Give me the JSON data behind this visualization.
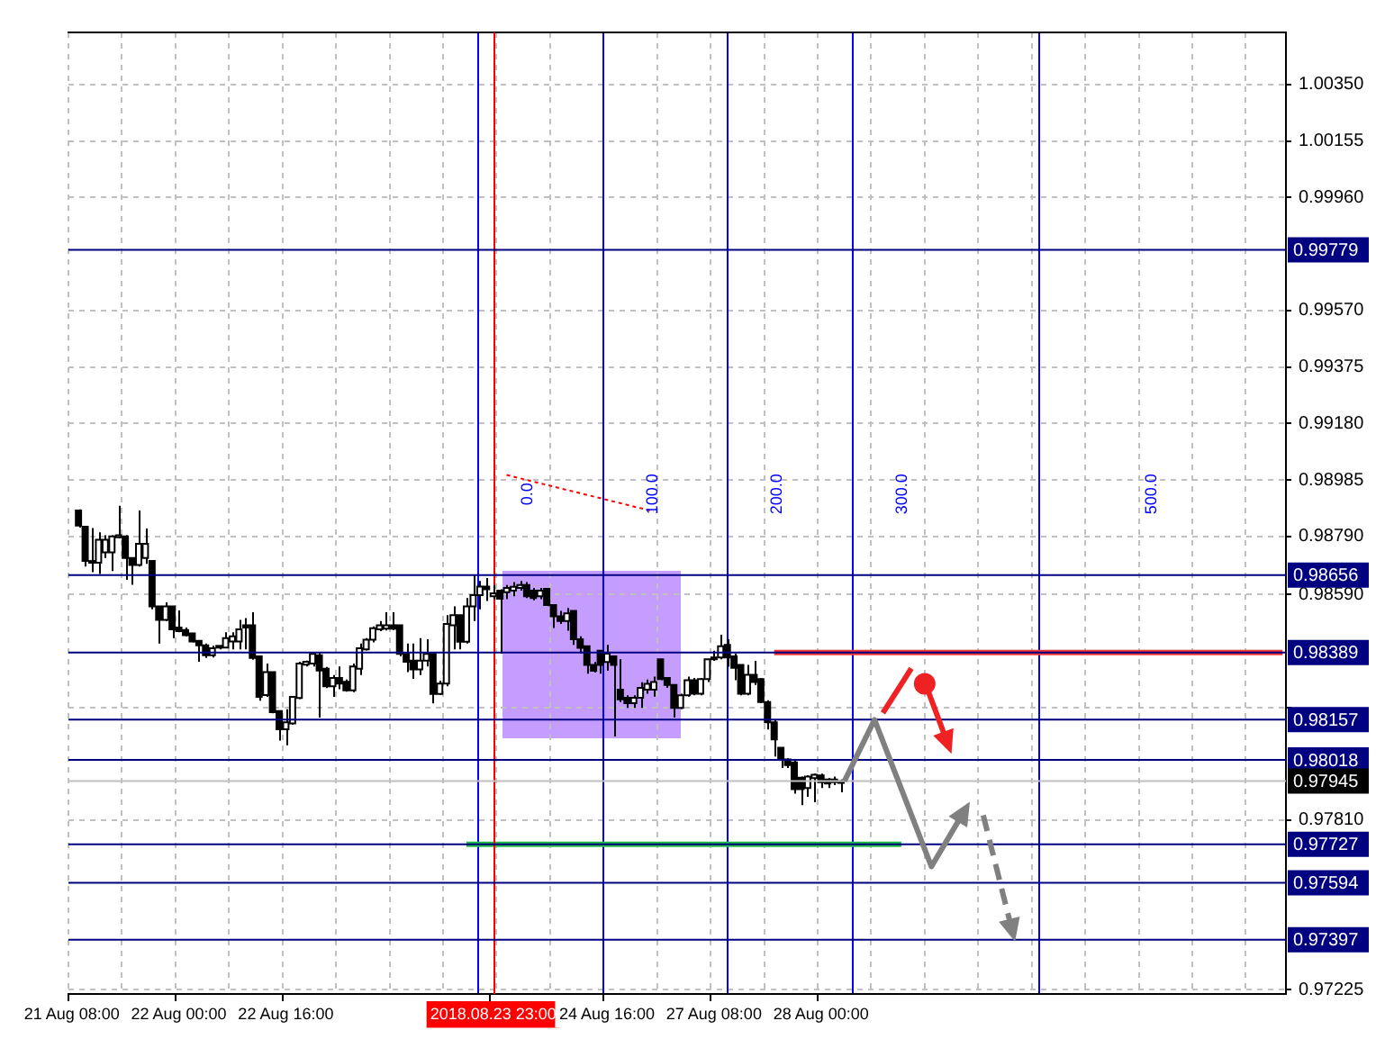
{
  "chart_data": {
    "type": "candlestick",
    "categories": [
      "21 Aug 08:00",
      null,
      null,
      null,
      null,
      null,
      null,
      null,
      null,
      null,
      null,
      null,
      null,
      null,
      null,
      null,
      "22 Aug 00:00",
      null,
      null,
      null,
      null,
      null,
      null,
      null,
      null,
      null,
      null,
      null,
      null,
      null,
      null,
      null,
      "22 Aug 16:00",
      null,
      null,
      null,
      null,
      null,
      null,
      null,
      null,
      null,
      null,
      null,
      null,
      null,
      null,
      null,
      null,
      null,
      null,
      null,
      null,
      null,
      null,
      null,
      null,
      null,
      null,
      null,
      null,
      null,
      null,
      "2018.08.23 23:00",
      null,
      null,
      null,
      null,
      null,
      null,
      null,
      null,
      null,
      null,
      null,
      null,
      null,
      null,
      null,
      null,
      "24 Aug 16:00",
      null,
      null,
      null,
      null,
      null,
      null,
      null,
      null,
      null,
      null,
      null,
      null,
      null,
      null,
      null,
      "27 Aug 08:00",
      null,
      null,
      null,
      null,
      null,
      null,
      null,
      null,
      null,
      null,
      null,
      null,
      null,
      null,
      null,
      "28 Aug 00:00",
      null,
      null,
      null,
      null,
      null,
      null,
      null,
      null,
      null,
      null,
      null,
      null,
      null,
      null,
      null,
      null,
      null,
      null,
      null,
      null,
      null,
      null,
      null,
      null,
      null,
      null,
      null,
      null,
      null,
      null,
      null,
      null,
      null,
      null,
      null,
      null,
      null,
      null,
      null,
      null,
      null,
      null,
      null,
      null,
      null,
      null,
      null,
      null,
      null,
      null,
      null,
      null,
      null,
      null,
      null,
      null,
      null,
      null,
      null,
      null,
      null,
      null,
      null,
      null,
      null,
      null,
      null,
      null,
      null
    ],
    "ohlc": [
      null,
      [
        0.98879,
        0.98883,
        0.9882,
        0.98827
      ],
      [
        0.98823,
        0.98825,
        0.98686,
        0.98705
      ],
      [
        0.98705,
        0.98819,
        0.98666,
        0.98699
      ],
      [
        0.98699,
        0.98804,
        0.9866,
        0.98778
      ],
      [
        0.98735,
        0.98794,
        0.98715,
        0.98778
      ],
      [
        0.98735,
        0.98794,
        0.9867,
        0.9879
      ],
      [
        0.98787,
        0.98896,
        0.98784,
        0.98794
      ],
      [
        0.9879,
        0.98794,
        0.9864,
        0.98715
      ],
      [
        0.98715,
        0.98715,
        0.98623,
        0.98691
      ],
      [
        0.98691,
        0.98879,
        0.98686,
        0.98764
      ],
      [
        0.98715,
        0.98817,
        0.98695,
        0.98764
      ],
      [
        0.98705,
        0.98705,
        0.98538,
        0.98548
      ],
      [
        0.98548,
        0.98548,
        0.9842,
        0.98502
      ],
      [
        0.98502,
        0.98562,
        0.98498,
        0.98548
      ],
      [
        0.98548,
        0.98548,
        0.98439,
        0.98469
      ],
      [
        0.98475,
        0.98534,
        0.98459,
        0.98463
      ],
      [
        0.98467,
        0.98475,
        0.98445,
        0.98449
      ],
      [
        0.98455,
        0.98455,
        0.98424,
        0.98427
      ],
      [
        0.98429,
        0.98429,
        0.98357,
        0.98414
      ],
      [
        0.98414,
        0.9842,
        0.9837,
        0.9838
      ],
      [
        0.9838,
        0.98412,
        0.98372,
        0.98404
      ],
      [
        0.98412,
        0.98412,
        0.984,
        0.98406
      ],
      [
        0.98406,
        0.98459,
        0.98404,
        0.98439
      ],
      [
        0.98427,
        0.98459,
        0.984,
        0.98445
      ],
      [
        0.98427,
        0.98502,
        0.984,
        0.98469
      ],
      [
        0.98483,
        0.98508,
        0.984,
        0.98475
      ],
      [
        0.98483,
        0.98528,
        0.98364,
        0.9837
      ],
      [
        0.98376,
        0.98376,
        0.98223,
        0.98236
      ],
      [
        0.98242,
        0.98351,
        0.98236,
        0.98321
      ],
      [
        0.98321,
        0.98321,
        0.98179,
        0.98183
      ],
      [
        0.98187,
        0.98187,
        0.98085,
        0.98124
      ],
      [
        0.98124,
        0.98193,
        0.98069,
        0.98148
      ],
      [
        0.98144,
        0.98236,
        0.9814,
        0.98236
      ],
      [
        0.98232,
        0.98357,
        0.98228,
        0.98351
      ],
      [
        0.98347,
        0.98361,
        0.98341,
        0.98357
      ],
      [
        0.98351,
        0.9839,
        0.98341,
        0.98384
      ],
      [
        0.9838,
        0.9839,
        0.98164,
        0.98327
      ],
      [
        0.98333,
        0.98339,
        0.98266,
        0.98272
      ],
      [
        0.98272,
        0.98311,
        0.98236,
        0.98301
      ],
      [
        0.98301,
        0.98341,
        0.98262,
        0.98282
      ],
      [
        0.98288,
        0.98296,
        0.98254,
        0.98258
      ],
      [
        0.98258,
        0.98351,
        0.98252,
        0.98341
      ],
      [
        0.98333,
        0.9842,
        0.98311,
        0.98404
      ],
      [
        0.984,
        0.98439,
        0.98396,
        0.98433
      ],
      [
        0.98433,
        0.98479,
        0.98424,
        0.98473
      ],
      [
        0.98469,
        0.98498,
        0.98463,
        0.98483
      ],
      [
        0.98471,
        0.98528,
        0.98465,
        0.98483
      ],
      [
        0.98483,
        0.98528,
        0.98467,
        0.98471
      ],
      [
        0.98483,
        0.98483,
        0.98376,
        0.98384
      ],
      [
        0.98384,
        0.9842,
        0.98321,
        0.98357
      ],
      [
        0.98361,
        0.9842,
        0.98298,
        0.98331
      ],
      [
        0.98331,
        0.98439,
        0.98311,
        0.98361
      ],
      [
        0.98361,
        0.98435,
        0.98341,
        0.98384
      ],
      [
        0.98384,
        0.98384,
        0.98213,
        0.98246
      ],
      [
        0.98246,
        0.98292,
        0.98242,
        0.98282
      ],
      [
        0.98282,
        0.98518,
        0.98272,
        0.98488
      ],
      [
        0.98483,
        0.98548,
        0.984,
        0.98518
      ],
      [
        0.98518,
        0.98518,
        0.984,
        0.98426
      ],
      [
        0.98426,
        0.98577,
        0.9842,
        0.98548
      ],
      [
        0.98548,
        0.98656,
        0.98498,
        0.98587
      ],
      [
        0.98587,
        0.98636,
        0.98538,
        0.98617
      ],
      [
        0.98617,
        0.98646,
        0.98567,
        0.98607
      ],
      [
        0.98583,
        0.98622,
        0.98573,
        0.98593
      ],
      [
        0.98603,
        0.98607,
        0.98385,
        0.98575
      ],
      [
        0.98597,
        0.98622,
        0.98573,
        0.98612
      ],
      [
        0.98603,
        0.98632,
        0.98583,
        0.98616
      ],
      [
        0.98612,
        0.98636,
        0.98603,
        0.98622
      ],
      [
        0.98622,
        0.98632,
        0.98577,
        0.98583
      ],
      [
        0.98603,
        0.98612,
        0.98569,
        0.98577
      ],
      [
        0.98583,
        0.98612,
        0.98573,
        0.98603
      ],
      [
        0.98609,
        0.98612,
        0.98549,
        0.98553
      ],
      [
        0.98553,
        0.98553,
        0.98474,
        0.98514
      ],
      [
        0.98514,
        0.98533,
        0.98488,
        0.98498
      ],
      [
        0.98498,
        0.98543,
        0.98464,
        0.98524
      ],
      [
        0.98533,
        0.98533,
        0.98415,
        0.98435
      ],
      [
        0.98435,
        0.98445,
        0.98385,
        0.98405
      ],
      [
        0.98411,
        0.98411,
        0.98316,
        0.98346
      ],
      [
        0.98346,
        0.98356,
        0.9832,
        0.98326
      ],
      [
        0.98395,
        0.98395,
        0.98316,
        0.98346
      ],
      [
        0.98356,
        0.98415,
        0.98326,
        0.98385
      ],
      [
        0.98376,
        0.98376,
        0.98099,
        0.98346
      ],
      [
        0.98261,
        0.98366,
        0.98218,
        0.98227
      ],
      [
        0.98233,
        0.98241,
        0.98198,
        0.98214
      ],
      [
        0.98214,
        0.98241,
        0.98198,
        0.98233
      ],
      [
        0.98233,
        0.98286,
        0.98198,
        0.98267
      ],
      [
        0.98261,
        0.98296,
        0.98247,
        0.98281
      ],
      [
        0.98261,
        0.98306,
        0.98237,
        0.98287
      ],
      [
        0.98366,
        0.98366,
        0.98293,
        0.98297
      ],
      [
        0.98301,
        0.98301,
        0.98267,
        0.98277
      ],
      [
        0.98277,
        0.98277,
        0.98164,
        0.98198
      ],
      [
        0.98198,
        0.98247,
        0.98194,
        0.98241
      ],
      [
        0.98241,
        0.98306,
        0.98237,
        0.98293
      ],
      [
        0.98293,
        0.98301,
        0.98241,
        0.98247
      ],
      [
        0.98247,
        0.98301,
        0.98241,
        0.98297
      ],
      [
        0.98297,
        0.98366,
        0.98287,
        0.98366
      ],
      [
        0.98366,
        0.98395,
        0.9836,
        0.98372
      ],
      [
        0.98372,
        0.9845,
        0.98366,
        0.98411
      ],
      [
        0.98415,
        0.98435,
        0.9834,
        0.98372
      ],
      [
        0.98376,
        0.98385,
        0.98293,
        0.98336
      ],
      [
        0.98346,
        0.98346,
        0.98241,
        0.98247
      ],
      [
        0.98247,
        0.98346,
        0.98241,
        0.98312
      ],
      [
        0.98312,
        0.9836,
        0.98277,
        0.98287
      ],
      [
        0.98297,
        0.98301,
        0.98214,
        0.98218
      ],
      [
        0.98218,
        0.98224,
        0.98123,
        0.98148
      ],
      [
        0.98148,
        0.98158,
        0.9803,
        0.98089
      ],
      [
        0.9806,
        0.9806,
        0.9799,
        0.9802
      ],
      [
        0.9802,
        0.98024,
        0.9799,
        0.98
      ],
      [
        0.9801,
        0.9802,
        0.97902,
        0.97917
      ],
      [
        0.97957,
        0.97961,
        0.97862,
        0.97917
      ],
      [
        0.97921,
        0.97965,
        0.97891,
        0.97961
      ],
      [
        0.97955,
        0.97971,
        0.97872,
        0.97967
      ],
      [
        0.97965,
        0.97971,
        0.97921,
        0.97941
      ],
      [
        0.97951,
        0.97955,
        0.97921,
        0.97937
      ],
      [
        0.97951,
        0.97961,
        0.97931,
        0.97941
      ],
      [
        0.97945,
        0.97951,
        0.97906,
        0.97941
      ],
      null,
      null,
      null,
      null,
      null,
      null,
      null,
      null,
      null,
      null,
      null,
      null,
      null,
      null,
      null,
      null,
      null,
      null,
      null,
      null,
      null,
      null,
      null,
      null,
      null,
      null,
      null,
      null,
      null,
      null,
      null,
      null,
      null,
      null,
      null,
      null,
      null,
      null,
      null,
      null,
      null,
      null,
      null,
      null,
      null,
      null,
      null,
      null,
      null,
      null,
      null,
      null,
      null,
      null,
      null,
      null,
      null,
      null,
      null,
      null,
      null,
      null,
      null,
      null,
      null,
      null
    ],
    "series": [
      {
        "type": "line",
        "color": "#22bb44",
        "values": [
          null,
          null,
          null,
          null,
          null,
          null,
          null,
          null,
          null,
          null,
          null,
          null,
          null,
          null,
          null,
          null,
          null,
          null,
          null,
          null,
          null,
          null,
          null,
          null,
          null,
          null,
          null,
          null,
          null,
          null,
          null,
          null,
          null,
          null,
          null,
          null,
          null,
          null,
          null,
          null,
          null,
          null,
          null,
          null,
          null,
          null,
          null,
          null,
          null,
          null,
          null,
          null,
          null,
          null,
          null,
          null,
          null,
          null,
          null,
          0.97727,
          0.97727,
          0.97727,
          0.97727,
          0.97727,
          0.97727,
          0.97727,
          0.97727,
          0.97727,
          0.97727,
          0.97727,
          0.97727,
          0.97727,
          0.97727,
          0.97727,
          0.97727,
          0.97727,
          0.97727,
          0.97727,
          0.97727,
          0.97727,
          0.97727,
          0.97727,
          0.97727,
          0.97727,
          0.97727,
          0.97727,
          0.97727,
          0.97727,
          0.97727,
          0.97727,
          0.97727,
          0.97727,
          0.97727,
          0.97727,
          0.97727,
          0.97727,
          0.97727,
          0.97727,
          0.97727,
          0.97727,
          0.97727,
          0.97727,
          0.97727,
          0.97727,
          0.97727,
          0.97727,
          0.97727,
          0.97727,
          0.97727,
          0.97727,
          0.97727,
          0.97727,
          0.97727,
          0.97727,
          0.97727,
          0.97727,
          0.97727,
          0.97727,
          0.97727,
          0.97727,
          0.97727,
          0.97727,
          0.97727,
          0.97727,
          0.97727,
          null,
          null,
          null,
          null,
          null,
          null,
          null,
          null,
          null,
          null,
          null,
          null,
          null,
          null,
          null,
          null,
          null,
          null,
          null,
          null,
          null,
          null,
          null,
          null,
          null,
          null,
          null,
          null,
          null,
          null,
          null,
          null,
          null,
          null,
          null,
          null,
          null,
          null,
          null,
          null,
          null,
          null,
          null,
          null,
          null,
          null,
          null,
          null,
          null,
          null,
          null,
          null,
          null,
          null,
          null,
          null,
          null
        ]
      },
      {
        "type": "line",
        "color": "#ee3333",
        "values": [
          null,
          null,
          null,
          null,
          null,
          null,
          null,
          null,
          null,
          null,
          null,
          null,
          null,
          null,
          null,
          null,
          null,
          null,
          null,
          null,
          null,
          null,
          null,
          null,
          null,
          null,
          null,
          null,
          null,
          null,
          null,
          null,
          null,
          null,
          null,
          null,
          null,
          null,
          null,
          null,
          null,
          null,
          null,
          null,
          null,
          null,
          null,
          null,
          null,
          null,
          null,
          null,
          null,
          null,
          null,
          null,
          null,
          null,
          null,
          null,
          null,
          null,
          null,
          null,
          null,
          null,
          null,
          null,
          null,
          null,
          null,
          null,
          null,
          null,
          null,
          null,
          null,
          null,
          null,
          null,
          null,
          null,
          null,
          null,
          null,
          null,
          null,
          null,
          null,
          null,
          null,
          null,
          null,
          null,
          null,
          null,
          null,
          null,
          null,
          null,
          null,
          null,
          null,
          null,
          null,
          0.98389,
          0.98389,
          0.98389,
          0.98389,
          0.98389,
          0.98389,
          0.98389,
          0.98389,
          0.98389,
          0.98389,
          0.98389,
          0.98389,
          0.98389,
          0.98389,
          0.98389,
          0.98389,
          0.98389,
          0.98389,
          0.98389,
          0.98389,
          0.98389,
          0.98389,
          0.98389,
          0.98389,
          0.98389,
          0.98389,
          0.98389,
          0.98389,
          0.98389,
          0.98389,
          0.98389,
          0.98389,
          0.98389,
          0.98389,
          0.98389,
          0.98389,
          0.98389,
          0.98389,
          0.98389,
          0.98389,
          0.98389,
          0.98389,
          0.98389,
          0.98389,
          0.98389,
          0.98389,
          0.98389,
          0.98389,
          0.98389,
          0.98389,
          0.98389,
          0.98389,
          0.98389,
          0.98389,
          0.98389,
          0.98389,
          0.98389,
          0.98389,
          0.98389,
          0.98389,
          0.98389,
          0.98389,
          0.98389,
          0.98389,
          0.98389,
          0.98389,
          0.98389,
          0.98389,
          0.98389,
          0.98389,
          0.98389,
          0.98389,
          0.98389,
          0.98389,
          0.98389,
          0.98389,
          0.98389
        ]
      },
      {
        "type": "line",
        "color": "#ff0000",
        "line_style": "dotted",
        "values": [
          null,
          null,
          null,
          null,
          null,
          null,
          null,
          null,
          null,
          null,
          null,
          null,
          null,
          null,
          null,
          null,
          null,
          null,
          null,
          null,
          null,
          null,
          null,
          null,
          null,
          null,
          null,
          null,
          null,
          null,
          null,
          null,
          null,
          null,
          null,
          null,
          null,
          null,
          null,
          null,
          null,
          null,
          null,
          null,
          null,
          null,
          null,
          null,
          null,
          null,
          null,
          null,
          null,
          null,
          null,
          null,
          null,
          null,
          null,
          null,
          null,
          null,
          null,
          null,
          null,
          0.99002,
          null,
          null,
          null,
          null,
          null,
          null,
          null,
          null,
          null,
          null,
          null,
          null,
          null,
          null,
          null,
          null,
          null,
          null,
          null,
          null,
          null,
          0.98876,
          null,
          null,
          null,
          null,
          null,
          null,
          null,
          null,
          null,
          null,
          null,
          null,
          null,
          null,
          null,
          null,
          null,
          null,
          null,
          null,
          null,
          null,
          null,
          null,
          null,
          null,
          null,
          null,
          null,
          null,
          null,
          null,
          null,
          null,
          null,
          null,
          null,
          null,
          null,
          null,
          null,
          null,
          null,
          null,
          null,
          null,
          null,
          null,
          null,
          null,
          null,
          null,
          null,
          null,
          null,
          null,
          null,
          null,
          null,
          null,
          null,
          null,
          null,
          null,
          null,
          null,
          null,
          null,
          null,
          null,
          null,
          null,
          null,
          null,
          null,
          null,
          null,
          null,
          null,
          null,
          null,
          null,
          null,
          null,
          null,
          null,
          null,
          null,
          null,
          null,
          null,
          null,
          null,
          null
        ]
      }
    ],
    "ylim": [
      0.9721,
      1.0053
    ],
    "yticks": [
      {
        "value": 1.0035,
        "label": "1.00350"
      },
      {
        "value": 1.00155,
        "label": "1.00155"
      },
      {
        "value": 0.9996,
        "label": "0.99960"
      },
      {
        "value": 0.9957,
        "label": "0.99570"
      },
      {
        "value": 0.99375,
        "label": "0.99375"
      },
      {
        "value": 0.9918,
        "label": "0.99180"
      },
      {
        "value": 0.98985,
        "label": "0.98985"
      },
      {
        "value": 0.9879,
        "label": "0.98790"
      },
      {
        "value": 0.9859,
        "label": "0.98590"
      },
      {
        "value": 0.982,
        "label": null
      },
      {
        "value": 0.9781,
        "label": "0.97810"
      },
      {
        "value": 0.97225,
        "label": "0.97225"
      }
    ],
    "x2lim": [
      -281,
      500
    ],
    "x2ticks": [
      {
        "value": 0,
        "label": "0.0"
      },
      {
        "value": 100,
        "label": "100.0"
      },
      {
        "value": 200,
        "label": "200.0"
      },
      {
        "value": 300,
        "label": "300.0"
      },
      {
        "value": 500,
        "label": "500.0"
      }
    ],
    "ref_lines": [
      {
        "axis": "y",
        "value": 0.99779,
        "label": "0.99779",
        "color": "#000080"
      },
      {
        "axis": "y",
        "value": 0.98656,
        "label": "0.98656",
        "color": "#000080"
      },
      {
        "axis": "y",
        "value": 0.98389,
        "label": "0.98389",
        "color": "#000080"
      },
      {
        "axis": "y",
        "value": 0.98157,
        "label": "0.98157",
        "color": "#000080"
      },
      {
        "axis": "y",
        "value": 0.98018,
        "label": "0.98018",
        "color": "#000080"
      },
      {
        "axis": "y",
        "value": 0.97945,
        "label": "0.97945",
        "color": "#c0c0c0"
      },
      {
        "axis": "y",
        "value": 0.97727,
        "label": "0.97727",
        "color": "#000080"
      },
      {
        "axis": "y",
        "value": 0.97594,
        "label": "0.97594",
        "color": "#000080"
      },
      {
        "axis": "y",
        "value": 0.97397,
        "label": "0.97397",
        "color": "#000080"
      },
      {
        "axis": "x",
        "value": "2018.08.23 23:00",
        "color": "#ff0000"
      }
    ],
    "grid": true
  }
}
